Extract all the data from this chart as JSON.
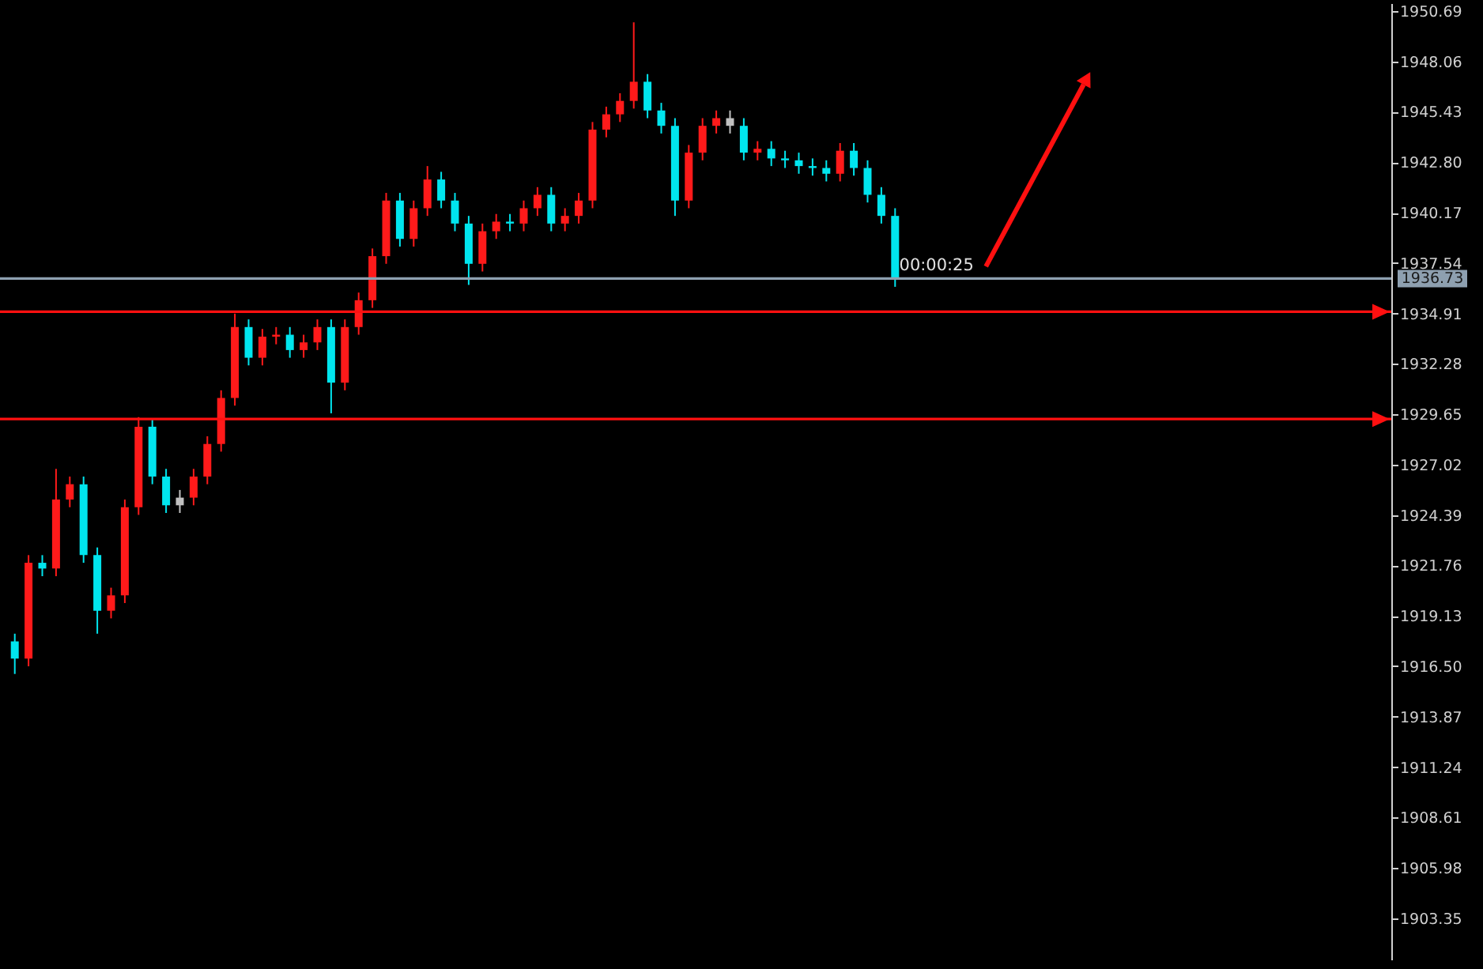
{
  "chart_data": {
    "type": "candlestick",
    "categories": [
      null,
      null,
      null,
      null,
      null,
      null,
      null,
      null,
      null,
      null,
      null,
      null,
      null,
      null,
      null,
      null,
      null,
      null,
      null,
      null,
      null,
      null,
      null,
      null,
      null,
      null,
      null,
      null,
      null,
      null,
      null,
      null,
      null,
      null,
      null,
      null,
      null,
      null,
      null,
      null,
      null,
      null,
      null,
      null,
      null,
      null,
      null,
      null,
      null,
      null,
      null,
      null,
      null,
      null,
      null,
      null,
      null,
      null,
      null,
      null,
      null,
      null,
      null,
      null,
      null,
      null,
      null,
      null,
      null,
      null,
      null,
      null,
      null,
      null,
      null,
      null,
      null,
      null,
      null,
      null,
      null,
      null,
      null,
      null,
      null,
      null,
      null,
      null,
      null,
      null,
      null,
      null,
      null,
      null,
      null,
      null,
      null,
      null,
      null,
      null
    ],
    "ohlc": [
      [
        1917.8,
        1918.2,
        1916.1,
        1916.9
      ],
      [
        1916.9,
        1922.3,
        1916.5,
        1921.9
      ],
      [
        1921.9,
        1922.3,
        1921.2,
        1921.6
      ],
      [
        1921.6,
        1926.8,
        1921.2,
        1925.2
      ],
      [
        1925.2,
        1926.4,
        1924.8,
        1926.0
      ],
      [
        1926.0,
        1926.4,
        1921.9,
        1922.3
      ],
      [
        1922.3,
        1922.7,
        1918.2,
        1919.4
      ],
      [
        1919.4,
        1920.6,
        1919.0,
        1920.2
      ],
      [
        1920.2,
        1925.2,
        1919.8,
        1924.8
      ],
      [
        1924.8,
        1929.5,
        1924.4,
        1929.0
      ],
      [
        1929.0,
        1929.4,
        1926.0,
        1926.4
      ],
      [
        1926.4,
        1926.8,
        1924.5,
        1924.9
      ],
      [
        1924.9,
        1925.7,
        1924.5,
        1925.3
      ],
      [
        1925.3,
        1926.8,
        1924.9,
        1926.4
      ],
      [
        1926.4,
        1928.5,
        1926.0,
        1928.1
      ],
      [
        1928.1,
        1930.9,
        1927.7,
        1930.5
      ],
      [
        1930.5,
        1934.9,
        1930.1,
        1934.2
      ],
      [
        1934.2,
        1934.6,
        1932.2,
        1932.6
      ],
      [
        1932.6,
        1934.1,
        1932.2,
        1933.7
      ],
      [
        1933.7,
        1934.2,
        1933.3,
        1933.8
      ],
      [
        1933.8,
        1934.2,
        1932.6,
        1933.0
      ],
      [
        1933.0,
        1933.8,
        1932.6,
        1933.4
      ],
      [
        1933.4,
        1934.6,
        1933.0,
        1934.2
      ],
      [
        1934.2,
        1934.6,
        1929.7,
        1931.3
      ],
      [
        1931.3,
        1934.6,
        1930.9,
        1934.2
      ],
      [
        1934.2,
        1936.0,
        1933.8,
        1935.6
      ],
      [
        1935.6,
        1938.3,
        1935.2,
        1937.9
      ],
      [
        1937.9,
        1941.2,
        1937.5,
        1940.8
      ],
      [
        1940.8,
        1941.2,
        1938.4,
        1938.8
      ],
      [
        1938.8,
        1940.8,
        1938.4,
        1940.4
      ],
      [
        1940.4,
        1942.6,
        1940.0,
        1941.9
      ],
      [
        1941.9,
        1942.3,
        1940.4,
        1940.8
      ],
      [
        1940.8,
        1941.2,
        1939.2,
        1939.6
      ],
      [
        1939.6,
        1940.0,
        1936.4,
        1937.5
      ],
      [
        1937.5,
        1939.6,
        1937.1,
        1939.2
      ],
      [
        1939.2,
        1940.1,
        1938.8,
        1939.7
      ],
      [
        1939.7,
        1940.1,
        1939.2,
        1939.6
      ],
      [
        1939.6,
        1940.8,
        1939.2,
        1940.4
      ],
      [
        1940.4,
        1941.5,
        1940.0,
        1941.1
      ],
      [
        1941.1,
        1941.5,
        1939.2,
        1939.6
      ],
      [
        1939.6,
        1940.4,
        1939.2,
        1940.0
      ],
      [
        1940.0,
        1941.2,
        1939.6,
        1940.8
      ],
      [
        1940.8,
        1944.9,
        1940.4,
        1944.5
      ],
      [
        1944.5,
        1945.7,
        1944.1,
        1945.3
      ],
      [
        1945.3,
        1946.4,
        1944.9,
        1946.0
      ],
      [
        1946.0,
        1950.1,
        1945.6,
        1947.0
      ],
      [
        1947.0,
        1947.4,
        1945.1,
        1945.5
      ],
      [
        1945.5,
        1945.9,
        1944.3,
        1944.7
      ],
      [
        1944.7,
        1945.1,
        1940.0,
        1940.8
      ],
      [
        1940.8,
        1943.7,
        1940.4,
        1943.3
      ],
      [
        1943.3,
        1945.1,
        1942.9,
        1944.7
      ],
      [
        1944.7,
        1945.5,
        1944.3,
        1945.1
      ],
      [
        1945.1,
        1945.5,
        1944.3,
        1944.7
      ],
      [
        1944.7,
        1945.1,
        1942.9,
        1943.3
      ],
      [
        1943.3,
        1943.9,
        1942.9,
        1943.5
      ],
      [
        1943.5,
        1943.9,
        1942.6,
        1943.0
      ],
      [
        1943.0,
        1943.4,
        1942.5,
        1942.9
      ],
      [
        1942.9,
        1943.3,
        1942.2,
        1942.6
      ],
      [
        1942.6,
        1943.0,
        1942.1,
        1942.5
      ],
      [
        1942.5,
        1942.9,
        1941.8,
        1942.2
      ],
      [
        1942.2,
        1943.8,
        1941.8,
        1943.4
      ],
      [
        1943.4,
        1943.8,
        1942.1,
        1942.5
      ],
      [
        1942.5,
        1942.9,
        1940.7,
        1941.1
      ],
      [
        1941.1,
        1941.5,
        1939.6,
        1940.0
      ],
      [
        1940.0,
        1940.4,
        1936.3,
        1936.7
      ],
      null,
      null,
      null,
      null,
      null,
      null,
      null,
      null,
      null,
      null,
      null,
      null,
      null,
      null,
      null,
      null,
      null,
      null,
      null,
      null,
      null,
      null,
      null,
      null,
      null,
      null,
      null,
      null,
      null,
      null,
      null,
      null,
      null,
      null,
      null
    ],
    "colors": [
      "#00e5ee",
      "#ff1a1a",
      "#00e5ee",
      "#ff1a1a",
      "#ff1a1a",
      "#00e5ee",
      "#00e5ee",
      "#ff1a1a",
      "#ff1a1a",
      "#ff1a1a",
      "#00e5ee",
      "#00e5ee",
      "#c0c0c0",
      "#ff1a1a",
      "#ff1a1a",
      "#ff1a1a",
      "#ff1a1a",
      "#00e5ee",
      "#ff1a1a",
      "#ff1a1a",
      "#00e5ee",
      "#ff1a1a",
      "#ff1a1a",
      "#00e5ee",
      "#ff1a1a",
      "#ff1a1a",
      "#ff1a1a",
      "#ff1a1a",
      "#00e5ee",
      "#ff1a1a",
      "#ff1a1a",
      "#00e5ee",
      "#00e5ee",
      "#00e5ee",
      "#ff1a1a",
      "#ff1a1a",
      "#00e5ee",
      "#ff1a1a",
      "#ff1a1a",
      "#00e5ee",
      "#ff1a1a",
      "#ff1a1a",
      "#ff1a1a",
      "#ff1a1a",
      "#ff1a1a",
      "#ff1a1a",
      "#00e5ee",
      "#00e5ee",
      "#00e5ee",
      "#ff1a1a",
      "#ff1a1a",
      "#ff1a1a",
      "#c0c0c0",
      "#00e5ee",
      "#ff1a1a",
      "#00e5ee",
      "#00e5ee",
      "#00e5ee",
      "#00e5ee",
      "#00e5ee",
      "#ff1a1a",
      "#00e5ee",
      "#00e5ee",
      "#00e5ee",
      "#00e5ee",
      null,
      null,
      null,
      null,
      null,
      null,
      null,
      null,
      null,
      null,
      null,
      null,
      null,
      null,
      null,
      null,
      null,
      null,
      null,
      null,
      null,
      null,
      null,
      null,
      null,
      null,
      null,
      null,
      null,
      null,
      null,
      null,
      null,
      null,
      null
    ],
    "ylim": [
      1901.2,
      1951.1
    ],
    "yticks": [
      1950.69,
      1948.06,
      1945.43,
      {
        "value": 1942.8,
        "label": "1942.80"
      },
      1940.17,
      1937.54,
      1934.91,
      1932.28,
      1929.65,
      1927.02,
      1924.39,
      1921.76,
      1919.13,
      {
        "value": 1916.5,
        "label": "1916.50"
      },
      1913.87,
      1911.24,
      1908.61,
      1905.98,
      1903.35
    ],
    "tick_labels": "y",
    "grid": false,
    "ref_lines": [
      {
        "axis": "y",
        "value": 1936.73,
        "label": "1936.73",
        "color": "#8ea0b0"
      },
      {
        "axis": "y",
        "value": 1935.0,
        "color": "#ff1010"
      },
      {
        "axis": "y",
        "value": 1929.4,
        "color": "#ff1010"
      }
    ],
    "annotations": [
      "00:00:25"
    ]
  }
}
